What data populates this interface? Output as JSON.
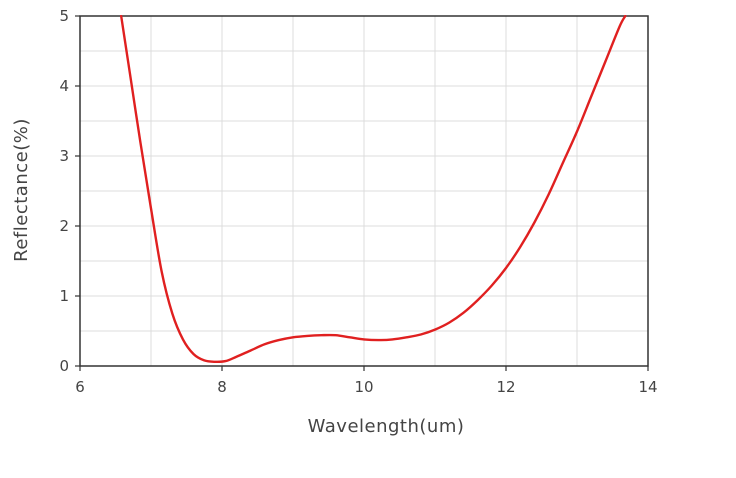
{
  "chart_data": {
    "type": "line",
    "title": "",
    "xlabel": "Wavelength(um)",
    "ylabel": "Reflectance(%)",
    "xlim": [
      6,
      14
    ],
    "ylim": [
      0,
      5
    ],
    "xticks": [
      6,
      8,
      10,
      12,
      14
    ],
    "yticks": [
      0,
      1,
      2,
      3,
      4,
      5
    ],
    "grid": true,
    "grid_step": {
      "x": 1,
      "y": 0.5
    },
    "colors": {
      "curve": "#e02020",
      "axis": "#333333",
      "grid": "#dcdcdc",
      "text": "#444444"
    },
    "series": [
      {
        "x": [
          6.58,
          6.7,
          6.85,
          7.0,
          7.15,
          7.3,
          7.45,
          7.6,
          7.75,
          7.9,
          8.05,
          8.2,
          8.4,
          8.6,
          8.8,
          9.0,
          9.2,
          9.4,
          9.6,
          9.8,
          10.0,
          10.2,
          10.4,
          10.6,
          10.8,
          11.0,
          11.2,
          11.4,
          11.6,
          11.8,
          12.0,
          12.2,
          12.4,
          12.6,
          12.8,
          13.0,
          13.2,
          13.4,
          13.6,
          13.68
        ],
        "y": [
          5.0,
          4.2,
          3.2,
          2.25,
          1.35,
          0.75,
          0.38,
          0.17,
          0.08,
          0.06,
          0.07,
          0.13,
          0.22,
          0.31,
          0.37,
          0.41,
          0.43,
          0.44,
          0.44,
          0.41,
          0.38,
          0.37,
          0.38,
          0.41,
          0.45,
          0.52,
          0.62,
          0.76,
          0.94,
          1.15,
          1.4,
          1.7,
          2.05,
          2.45,
          2.9,
          3.35,
          3.85,
          4.35,
          4.85,
          5.0
        ]
      }
    ]
  }
}
